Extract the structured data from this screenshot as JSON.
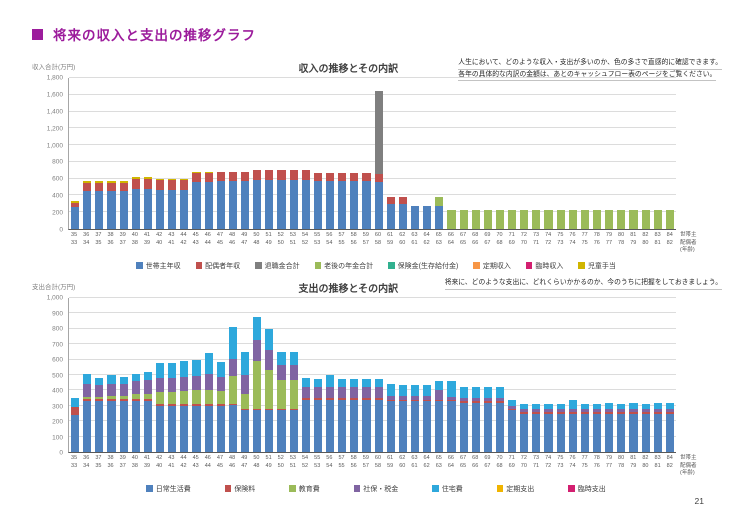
{
  "page": {
    "title": "将来の収入と支出の推移グラフ",
    "page_number": "21"
  },
  "chart_data": [
    {
      "type": "bar",
      "stacked": true,
      "title": "収入の推移とその内訳",
      "ylabel": "収入合計(万円)",
      "note": [
        "人生において、どのような収入・支出が多いのか、色の多さで直感的に確認できます。",
        "各年の具体的な内訳の金額は、あとのキャッシュフロー表のページをご覧ください。"
      ],
      "ylim": [
        0,
        1800
      ],
      "ytick_step": 200,
      "grid": true,
      "legend_position": "bottom",
      "right_axis_labels": [
        "世帯主",
        "配偶者",
        "(年齢)"
      ],
      "ages_head": [
        35,
        36,
        37,
        38,
        39,
        40,
        41,
        42,
        43,
        44,
        45,
        46,
        47,
        48,
        49,
        50,
        51,
        52,
        53,
        54,
        55,
        56,
        57,
        58,
        59,
        60,
        61,
        62,
        63,
        64,
        65,
        66,
        67,
        68,
        69,
        70,
        71,
        72,
        73,
        74,
        75,
        76,
        77,
        78,
        79,
        80,
        81,
        82,
        83,
        84
      ],
      "ages_spouse": [
        33,
        34,
        35,
        36,
        37,
        38,
        39,
        40,
        41,
        42,
        43,
        44,
        45,
        46,
        47,
        48,
        49,
        50,
        51,
        52,
        53,
        54,
        55,
        56,
        57,
        58,
        59,
        60,
        61,
        62,
        63,
        64,
        65,
        66,
        67,
        68,
        69,
        70,
        71,
        72,
        73,
        74,
        75,
        76,
        77,
        78,
        79,
        80,
        81,
        82
      ],
      "series": [
        {
          "name": "世帯主年収",
          "color": "#4f81bd",
          "values": [
            260,
            450,
            450,
            450,
            450,
            480,
            480,
            470,
            470,
            470,
            560,
            565,
            570,
            570,
            570,
            590,
            590,
            590,
            590,
            590,
            570,
            570,
            570,
            570,
            570,
            560,
            300,
            300,
            280,
            280,
            280,
            0,
            0,
            0,
            0,
            0,
            0,
            0,
            0,
            0,
            0,
            0,
            0,
            0,
            0,
            0,
            0,
            0,
            0,
            0
          ]
        },
        {
          "name": "配偶者年収",
          "color": "#c0504d",
          "values": [
            55,
            100,
            100,
            100,
            100,
            115,
            115,
            110,
            110,
            110,
            105,
            105,
            105,
            105,
            105,
            110,
            110,
            110,
            110,
            110,
            100,
            100,
            100,
            100,
            100,
            100,
            80,
            80,
            0,
            0,
            0,
            0,
            0,
            0,
            0,
            0,
            0,
            0,
            0,
            0,
            0,
            0,
            0,
            0,
            0,
            0,
            0,
            0,
            0,
            0
          ]
        },
        {
          "name": "退職金合計",
          "color": "#7f7f7f",
          "values": [
            0,
            0,
            0,
            0,
            0,
            0,
            0,
            0,
            0,
            0,
            0,
            0,
            0,
            0,
            0,
            0,
            0,
            0,
            0,
            0,
            0,
            0,
            0,
            0,
            0,
            990,
            0,
            0,
            0,
            0,
            0,
            0,
            0,
            0,
            0,
            0,
            0,
            0,
            0,
            0,
            0,
            0,
            0,
            0,
            0,
            0,
            0,
            0,
            0,
            0
          ]
        },
        {
          "name": "老後の年金合計",
          "color": "#9bbb59",
          "values": [
            0,
            0,
            0,
            0,
            0,
            0,
            0,
            0,
            0,
            0,
            0,
            0,
            0,
            0,
            0,
            0,
            0,
            0,
            0,
            0,
            0,
            0,
            0,
            0,
            0,
            0,
            0,
            0,
            0,
            0,
            100,
            230,
            230,
            230,
            230,
            230,
            230,
            230,
            230,
            230,
            230,
            230,
            230,
            230,
            230,
            230,
            230,
            230,
            230,
            230
          ]
        },
        {
          "name": "保険金(生存給付金)",
          "color": "#31b08f",
          "values": [
            0,
            0,
            0,
            0,
            0,
            0,
            0,
            0,
            0,
            0,
            0,
            0,
            0,
            0,
            0,
            0,
            0,
            0,
            0,
            0,
            0,
            0,
            0,
            0,
            0,
            0,
            0,
            0,
            0,
            0,
            0,
            0,
            0,
            0,
            0,
            0,
            0,
            0,
            0,
            0,
            0,
            0,
            0,
            0,
            0,
            0,
            0,
            0,
            0,
            0
          ]
        },
        {
          "name": "定期収入",
          "color": "#f79646",
          "values": [
            0,
            0,
            0,
            0,
            0,
            0,
            0,
            0,
            0,
            0,
            0,
            0,
            0,
            0,
            0,
            0,
            0,
            0,
            0,
            0,
            0,
            0,
            0,
            0,
            0,
            0,
            0,
            0,
            0,
            0,
            0,
            0,
            0,
            0,
            0,
            0,
            0,
            0,
            0,
            0,
            0,
            0,
            0,
            0,
            0,
            0,
            0,
            0,
            0,
            0
          ]
        },
        {
          "name": "臨時収入",
          "color": "#d31f70",
          "values": [
            0,
            0,
            0,
            0,
            0,
            0,
            0,
            0,
            0,
            0,
            0,
            0,
            0,
            0,
            0,
            0,
            0,
            0,
            0,
            0,
            0,
            0,
            0,
            0,
            0,
            0,
            0,
            0,
            0,
            0,
            0,
            0,
            0,
            0,
            0,
            0,
            0,
            0,
            0,
            0,
            0,
            0,
            0,
            0,
            0,
            0,
            0,
            0,
            0,
            0
          ]
        },
        {
          "name": "児童手当",
          "color": "#d0b500",
          "values": [
            15,
            20,
            20,
            20,
            20,
            20,
            20,
            20,
            20,
            20,
            10,
            10,
            0,
            0,
            0,
            0,
            0,
            0,
            0,
            0,
            0,
            0,
            0,
            0,
            0,
            0,
            0,
            0,
            0,
            0,
            0,
            0,
            0,
            0,
            0,
            0,
            0,
            0,
            0,
            0,
            0,
            0,
            0,
            0,
            0,
            0,
            0,
            0,
            0,
            0
          ]
        }
      ]
    },
    {
      "type": "bar",
      "stacked": true,
      "title": "支出の推移とその内訳",
      "ylabel": "支出合計(万円)",
      "note": [
        "将来に、どのような支出に、どれくらいかかるのか、今のうちに把握をしておきましょう。"
      ],
      "ylim": [
        0,
        1000
      ],
      "ytick_step": 100,
      "grid": true,
      "legend_position": "bottom",
      "right_axis_labels": [
        "世帯主",
        "配偶者",
        "(年齢)"
      ],
      "ages_head": [
        35,
        36,
        37,
        38,
        39,
        40,
        41,
        42,
        43,
        44,
        45,
        46,
        47,
        48,
        49,
        50,
        51,
        52,
        53,
        54,
        55,
        56,
        57,
        58,
        59,
        60,
        61,
        62,
        63,
        64,
        65,
        66,
        67,
        68,
        69,
        70,
        71,
        72,
        73,
        74,
        75,
        76,
        77,
        78,
        79,
        80,
        81,
        82,
        83,
        84
      ],
      "ages_spouse": [
        33,
        34,
        35,
        36,
        37,
        38,
        39,
        40,
        41,
        42,
        43,
        44,
        45,
        46,
        47,
        48,
        49,
        50,
        51,
        52,
        53,
        54,
        55,
        56,
        57,
        58,
        59,
        60,
        61,
        62,
        63,
        64,
        65,
        66,
        67,
        68,
        69,
        70,
        71,
        72,
        73,
        74,
        75,
        76,
        77,
        78,
        79,
        80,
        81,
        82
      ],
      "series": [
        {
          "name": "日常生活費",
          "color": "#4f81bd",
          "values": [
            240,
            330,
            330,
            330,
            330,
            330,
            330,
            300,
            300,
            300,
            300,
            300,
            300,
            305,
            270,
            270,
            270,
            270,
            270,
            340,
            340,
            340,
            340,
            340,
            340,
            340,
            330,
            330,
            330,
            330,
            330,
            330,
            320,
            320,
            320,
            320,
            270,
            250,
            250,
            250,
            250,
            250,
            250,
            250,
            250,
            250,
            250,
            250,
            250,
            250
          ]
        },
        {
          "name": "保険料",
          "color": "#c0504d",
          "values": [
            50,
            15,
            15,
            15,
            15,
            15,
            15,
            10,
            10,
            10,
            10,
            10,
            10,
            10,
            10,
            10,
            10,
            10,
            10,
            10,
            10,
            10,
            10,
            10,
            10,
            10,
            10,
            10,
            10,
            10,
            10,
            10,
            10,
            10,
            10,
            10,
            10,
            10,
            10,
            10,
            10,
            10,
            10,
            10,
            10,
            10,
            10,
            10,
            10,
            10
          ]
        },
        {
          "name": "教育費",
          "color": "#9bbb59",
          "values": [
            0,
            15,
            15,
            20,
            20,
            30,
            35,
            80,
            80,
            85,
            90,
            95,
            85,
            180,
            100,
            310,
            250,
            190,
            190,
            0,
            0,
            0,
            0,
            0,
            0,
            0,
            0,
            0,
            0,
            0,
            0,
            0,
            0,
            0,
            0,
            0,
            0,
            0,
            0,
            0,
            0,
            0,
            0,
            0,
            0,
            0,
            0,
            0,
            0,
            0
          ]
        },
        {
          "name": "社保・税金",
          "color": "#8064a2",
          "values": [
            0,
            85,
            75,
            80,
            75,
            85,
            90,
            90,
            90,
            95,
            95,
            100,
            90,
            110,
            120,
            140,
            130,
            95,
            95,
            70,
            70,
            70,
            70,
            70,
            70,
            70,
            25,
            25,
            25,
            25,
            60,
            20,
            20,
            20,
            20,
            20,
            20,
            20,
            20,
            20,
            20,
            20,
            20,
            20,
            20,
            20,
            20,
            20,
            20,
            20
          ]
        },
        {
          "name": "住宅費",
          "color": "#2ea8dc",
          "values": [
            60,
            60,
            45,
            55,
            50,
            50,
            50,
            100,
            95,
            100,
            105,
            135,
            100,
            205,
            150,
            150,
            140,
            85,
            85,
            60,
            55,
            80,
            55,
            55,
            55,
            55,
            75,
            70,
            70,
            70,
            60,
            100,
            70,
            70,
            70,
            70,
            40,
            35,
            35,
            35,
            35,
            60,
            35,
            35,
            40,
            35,
            40,
            35,
            40,
            40
          ]
        },
        {
          "name": "定期支出",
          "color": "#f0b400",
          "values": [
            0,
            0,
            0,
            0,
            0,
            0,
            0,
            0,
            0,
            0,
            0,
            0,
            0,
            0,
            0,
            0,
            0,
            0,
            0,
            0,
            0,
            0,
            0,
            0,
            0,
            0,
            0,
            0,
            0,
            0,
            0,
            0,
            0,
            0,
            0,
            0,
            0,
            0,
            0,
            0,
            0,
            0,
            0,
            0,
            0,
            0,
            0,
            0,
            0,
            0
          ]
        },
        {
          "name": "臨時支出",
          "color": "#d31f70",
          "values": [
            0,
            0,
            0,
            0,
            0,
            0,
            0,
            0,
            0,
            0,
            0,
            0,
            0,
            0,
            0,
            0,
            0,
            0,
            0,
            0,
            0,
            0,
            0,
            0,
            0,
            0,
            0,
            0,
            0,
            0,
            0,
            0,
            0,
            0,
            0,
            0,
            0,
            0,
            0,
            0,
            0,
            0,
            0,
            0,
            0,
            0,
            0,
            0,
            0,
            0
          ]
        }
      ]
    }
  ]
}
